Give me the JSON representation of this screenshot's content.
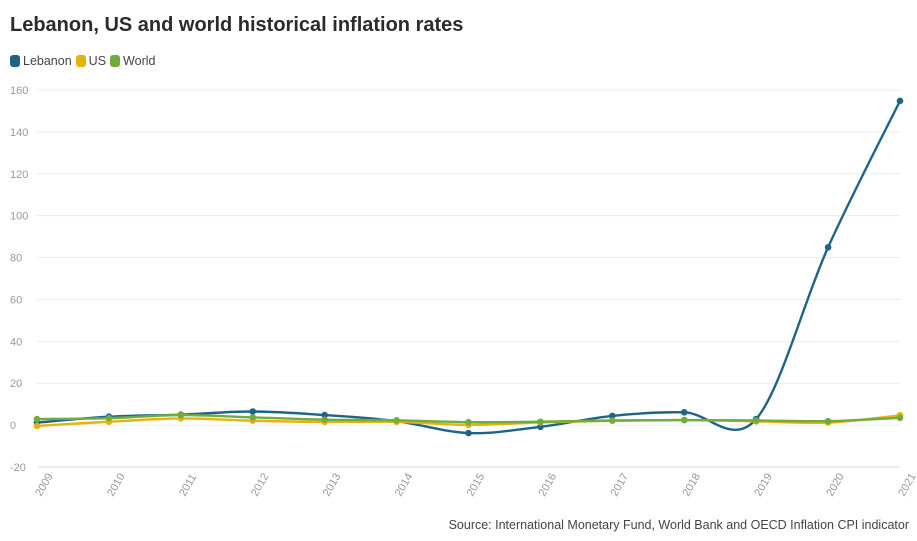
{
  "chart_data": {
    "type": "line",
    "title": "Lebanon, US and world historical inflation rates",
    "source": "Source: International Monetary Fund, World Bank and OECD Inflation CPI indicator",
    "xlabel": "",
    "ylabel": "",
    "ylim": [
      -20,
      160
    ],
    "yticks": [
      -20,
      0,
      20,
      40,
      60,
      80,
      100,
      120,
      140,
      160
    ],
    "categories": [
      "2009",
      "2010",
      "2011",
      "2012",
      "2013",
      "2014",
      "2015",
      "2016",
      "2017",
      "2018",
      "2019",
      "2020",
      "2021"
    ],
    "series": [
      {
        "name": "Lebanon",
        "color": "#1f6388",
        "values": [
          1.2,
          4.0,
          5.0,
          6.5,
          4.8,
          1.9,
          -3.8,
          -0.8,
          4.4,
          6.1,
          2.9,
          84.9,
          154.8
        ]
      },
      {
        "name": "US",
        "color": "#e6b20f",
        "values": [
          -0.4,
          1.6,
          3.2,
          2.1,
          1.5,
          1.6,
          0.1,
          1.3,
          2.1,
          2.4,
          1.8,
          1.2,
          4.7
        ]
      },
      {
        "name": "World",
        "color": "#6fac3e",
        "values": [
          2.9,
          3.3,
          4.8,
          3.7,
          2.6,
          2.3,
          1.4,
          1.6,
          2.2,
          2.4,
          2.2,
          1.9,
          3.5
        ]
      }
    ]
  }
}
